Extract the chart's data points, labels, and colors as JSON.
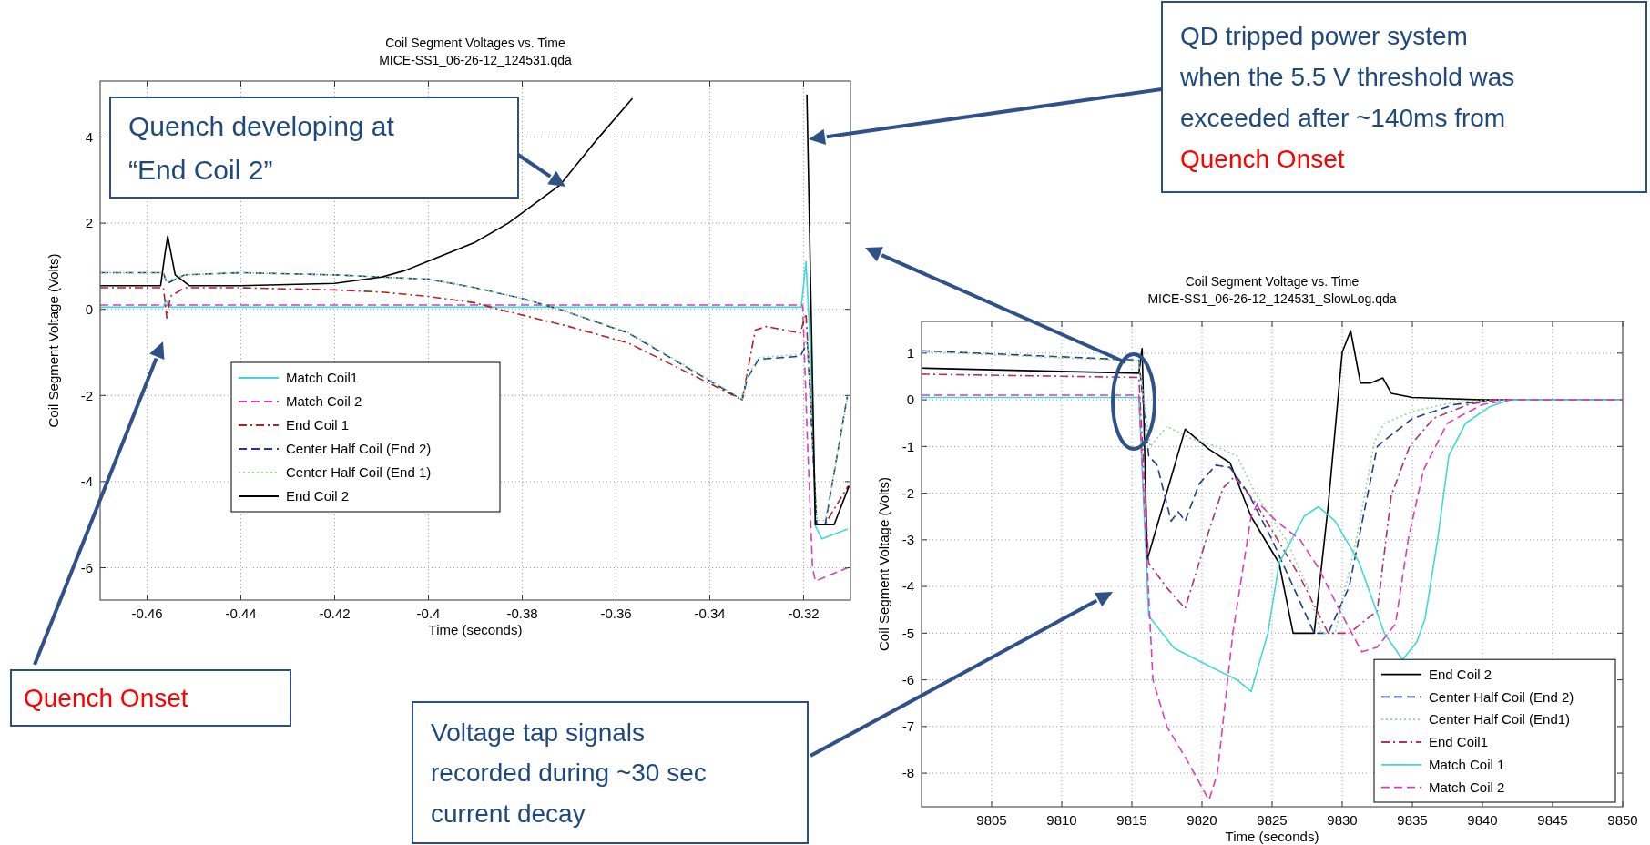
{
  "chart_data": [
    {
      "type": "line",
      "title": "Coil Segment Voltages vs. Time",
      "subtitle": "MICE-SS1_06-26-12_124531.qda",
      "xlabel": "Time (seconds)",
      "ylabel": "Coil Segment Voltage (Volts)",
      "xlim": [
        -0.47,
        -0.31
      ],
      "xticks": [
        -0.46,
        -0.44,
        -0.42,
        -0.4,
        -0.38,
        -0.36,
        -0.34,
        -0.32
      ],
      "ylim": [
        -6.75,
        5.3
      ],
      "yticks": [
        -6,
        -4,
        -2,
        0,
        2,
        4
      ],
      "grid": true,
      "legend": "bottom left",
      "series": [
        {
          "name": "Match Coil1",
          "color": "#3fd9d9",
          "line_style": "solid",
          "x": [
            -0.47,
            -0.4565,
            -0.456,
            -0.455,
            -0.3205,
            -0.3195,
            -0.3185,
            -0.3175,
            -0.3161,
            -0.3106
          ],
          "values": [
            0.05,
            0.05,
            0.2,
            0.05,
            0.05,
            1.11,
            -1,
            -5.03,
            -5.33,
            -5.1
          ]
        },
        {
          "name": "Match Coil 2",
          "color": "#d63fbf",
          "line_style": "dashed",
          "x": [
            -0.47,
            -0.3202,
            -0.3192,
            -0.3181,
            -0.3175,
            -0.3106
          ],
          "values": [
            0.1,
            0.1,
            -3,
            -6,
            -6.31,
            -6.0
          ]
        },
        {
          "name": "End Coil 1",
          "color": "#b22222",
          "line_style": "dashdot",
          "x": [
            -0.47,
            -0.4565,
            -0.4558,
            -0.455,
            -0.452,
            -0.44,
            -0.42,
            -0.41,
            -0.4,
            -0.39,
            -0.385,
            -0.37,
            -0.3574,
            -0.3331,
            -0.3303,
            -0.328,
            -0.3207,
            -0.3195,
            -0.3185,
            -0.3172,
            -0.3155,
            -0.3105
          ],
          "values": [
            0.5,
            0.5,
            -0.2,
            0.3,
            0.5,
            0.5,
            0.45,
            0.4,
            0.3,
            0.15,
            0,
            -0.4,
            -0.78,
            -2.1,
            -0.48,
            -0.4,
            -0.55,
            -0.1,
            -2,
            -5,
            -5,
            -4.1
          ]
        },
        {
          "name": "Center Half Coil (End 2)",
          "color": "#1f3c8c",
          "line_style": "dashed",
          "x": [
            -0.47,
            -0.4565,
            -0.4558,
            -0.452,
            -0.44,
            -0.42,
            -0.41,
            -0.4,
            -0.39,
            -0.38,
            -0.372,
            -0.3574,
            -0.3331,
            -0.332,
            -0.3296,
            -0.3207,
            -0.3192,
            -0.3172,
            -0.3154,
            -0.3107
          ],
          "values": [
            0.85,
            0.85,
            0.6,
            0.8,
            0.85,
            0.8,
            0.75,
            0.7,
            0.5,
            0.25,
            0,
            -0.55,
            -2.1,
            -1.6,
            -1.16,
            -1.09,
            -0.78,
            -5,
            -5,
            -2.03
          ]
        },
        {
          "name": "Center Half Coil (End 1)",
          "color": "#8fd98f",
          "line_style": "dotted",
          "x": [
            -0.47,
            -0.4565,
            -0.4558,
            -0.452,
            -0.44,
            -0.42,
            -0.41,
            -0.4,
            -0.39,
            -0.38,
            -0.372,
            -0.3574,
            -0.3331,
            -0.332,
            -0.3296,
            -0.3207,
            -0.3192,
            -0.3172,
            -0.3154,
            -0.3107
          ],
          "values": [
            0.85,
            0.85,
            0.65,
            0.8,
            0.85,
            0.8,
            0.75,
            0.7,
            0.5,
            0.25,
            0,
            -0.53,
            -2.08,
            -1.55,
            -1.12,
            -1.05,
            -0.7,
            -4.9,
            -4.9,
            -2.1
          ]
        },
        {
          "name": "End Coil 2",
          "color": "#000000",
          "line_style": "solid",
          "x": [
            -0.47,
            -0.4571,
            -0.4563,
            -0.4556,
            -0.454,
            -0.451,
            -0.44,
            -0.42,
            -0.41,
            -0.405,
            -0.4,
            -0.39,
            -0.383,
            -0.372,
            -0.364,
            -0.3565,
            -0.34,
            -0.3193,
            -0.3175,
            -0.3135,
            -0.3103
          ],
          "values": [
            0.55,
            0.55,
            1.2,
            1.7,
            0.8,
            0.55,
            0.55,
            0.6,
            0.75,
            0.9,
            1.12,
            1.56,
            2,
            2.88,
            3.95,
            4.9,
            null,
            4.99,
            -5,
            -5,
            -4.1
          ]
        }
      ],
      "annotations": [
        "Quench developing at “End Coil 2”",
        "Quench Onset",
        "QD tripped power system when the 5.5 V threshold was exceeded after ~140ms from Quench Onset"
      ]
    },
    {
      "type": "line",
      "title": "Coil Segment Voltage vs. Time",
      "subtitle": "MICE-SS1_06-26-12_124531_SlowLog.qda",
      "xlabel": "Time (seconds)",
      "ylabel": "Coil Segment Voltage (Volts)",
      "xlim": [
        9800,
        9850
      ],
      "xticks": [
        9805,
        9810,
        9815,
        9820,
        9825,
        9830,
        9835,
        9840,
        9845,
        9850
      ],
      "ylim": [
        -8.72,
        1.68
      ],
      "yticks": [
        -8,
        -7,
        -6,
        -5,
        -4,
        -3,
        -2,
        -1,
        0,
        1
      ],
      "grid": true,
      "legend": "bottom right",
      "series": [
        {
          "name": "End Coil 2",
          "color": "#000000",
          "line_style": "solid",
          "x": [
            9800,
            9815.5,
            9815.73,
            9816.1,
            9818.8,
            9820.5,
            9822,
            9823.5,
            9825.5,
            9826.5,
            9828,
            9829,
            9830,
            9830.6,
            9831.3,
            9832,
            9832.9,
            9833.5,
            9835,
            9837,
            9840,
            9850
          ],
          "values": [
            0.68,
            0.57,
            1.1,
            -3.42,
            -0.63,
            -1.06,
            -1.35,
            -2.5,
            -3.5,
            -5,
            -5,
            -2.27,
            1.02,
            1.48,
            0.36,
            0.36,
            0.47,
            0.14,
            0.05,
            0.03,
            0,
            0
          ]
        },
        {
          "name": "Center Half Coil (End 2)",
          "color": "#1f3c8c",
          "line_style": "dashed",
          "x": [
            9800,
            9815.5,
            9816.2,
            9816.8,
            9817.8,
            9818.3,
            9818.8,
            9819.8,
            9821,
            9822,
            9823.3,
            9825,
            9828,
            9829,
            9830.5,
            9832.5,
            9833.3,
            9835,
            9838,
            9841,
            9850
          ],
          "values": [
            1.05,
            0.85,
            -1.2,
            -1.4,
            -2.6,
            -2.4,
            -2.6,
            -1.8,
            -1.4,
            -1.45,
            -2,
            -3,
            -5,
            -5,
            -4,
            -1,
            -0.8,
            -0.4,
            -0.1,
            0,
            0
          ]
        },
        {
          "name": "Center Half Coil (End1)",
          "color": "#8fd98f",
          "line_style": "dotted",
          "x": [
            9800,
            9815.5,
            9816.3,
            9817.5,
            9819,
            9821,
            9822.5,
            9823.8,
            9826,
            9827.5,
            9828.5,
            9829.5,
            9831,
            9832.3,
            9833,
            9835,
            9838,
            9841,
            9850
          ],
          "values": [
            1.03,
            0.83,
            -1,
            -0.57,
            -0.8,
            -1,
            -1.2,
            -2,
            -3,
            -4,
            -5,
            -5,
            -3,
            -0.9,
            -0.5,
            -0.25,
            -0.05,
            0,
            0
          ]
        },
        {
          "name": "End Coil1",
          "color": "#b0306a",
          "line_style": "dashdot",
          "x": [
            9800,
            9815.5,
            9816.2,
            9817.5,
            9818.8,
            9820.3,
            9821.5,
            9822.3,
            9823.8,
            9827,
            9829,
            9830.5,
            9832.5,
            9833.5,
            9834.8,
            9836.5,
            9839,
            9841,
            9850
          ],
          "values": [
            0.55,
            0.48,
            -3.5,
            -4.03,
            -4.47,
            -2.99,
            -1.89,
            -1.65,
            -2.2,
            -3.8,
            -5,
            -5,
            -4.52,
            -2.05,
            -1,
            -0.4,
            -0.1,
            0,
            0
          ]
        },
        {
          "name": "Match Coil 1",
          "color": "#3fd9d9",
          "line_style": "solid",
          "x": [
            9800,
            9815.5,
            9816.2,
            9818,
            9821,
            9822.5,
            9823.5,
            9824.7,
            9825.5,
            9827.3,
            9828.3,
            9829.5,
            9831.2,
            9833,
            9834.3,
            9835.3,
            9835.9,
            9836.8,
            9837.6,
            9838.8,
            9840.5,
            9842,
            9850
          ],
          "values": [
            0.05,
            0.05,
            -4.63,
            -5.32,
            -5.78,
            -6,
            -6.25,
            -5,
            -3.5,
            -2.49,
            -2.29,
            -2.6,
            -3.48,
            -5,
            -5.57,
            -5.2,
            -4.7,
            -3,
            -1.2,
            -0.5,
            -0.15,
            0,
            0
          ]
        },
        {
          "name": "Match Coil 2",
          "color": "#d63fbf",
          "line_style": "dashed",
          "x": [
            9800,
            9815.5,
            9816,
            9816.5,
            9817.5,
            9819,
            9820.5,
            9821.1,
            9822.2,
            9823.5,
            9824,
            9825.3,
            9827,
            9828.3,
            9829.8,
            9831.4,
            9832.5,
            9833.8,
            9834.7,
            9835.8,
            9837.5,
            9840,
            9842,
            9850
          ],
          "values": [
            0.1,
            0.1,
            -3,
            -6,
            -7,
            -7.76,
            -8.58,
            -8,
            -5,
            -2.5,
            -2.2,
            -2.6,
            -3,
            -3.6,
            -4.5,
            -5.4,
            -5.3,
            -4.8,
            -3,
            -1.5,
            -0.5,
            -0.1,
            0,
            0
          ]
        }
      ],
      "annotations": [
        "Voltage tap signals recorded during ~30 sec current decay"
      ]
    }
  ]
}
